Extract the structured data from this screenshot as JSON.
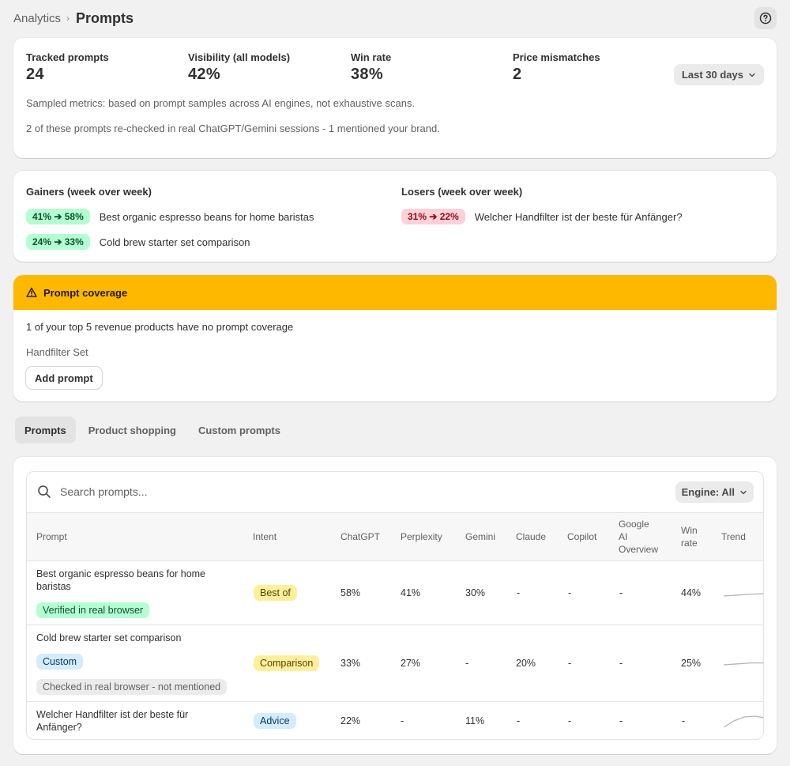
{
  "breadcrumb": {
    "parent": "Analytics",
    "separator": "›",
    "current": "Prompts"
  },
  "metrics": [
    {
      "label": "Tracked prompts",
      "value": "24"
    },
    {
      "label": "Visibility (all models)",
      "value": "42%"
    },
    {
      "label": "Win rate",
      "value": "38%"
    },
    {
      "label": "Price mismatches",
      "value": "2"
    }
  ],
  "date_range": "Last 30 days",
  "notes": {
    "sampled": "Sampled metrics: based on prompt samples across AI engines, not exhaustive scans.",
    "rechecked": "2 of these prompts re-checked in real ChatGPT/Gemini sessions - 1 mentioned your brand."
  },
  "gainers": {
    "heading": "Gainers (week over week)",
    "items": [
      {
        "change": "41% ➔ 58%",
        "prompt": "Best organic espresso beans for home baristas"
      },
      {
        "change": "24% ➔ 33%",
        "prompt": "Cold brew starter set comparison"
      }
    ]
  },
  "losers": {
    "heading": "Losers (week over week)",
    "items": [
      {
        "change": "31% ➔ 22%",
        "prompt": "Welcher Handfilter ist der beste für Anfänger?"
      }
    ]
  },
  "coverage": {
    "title": "Prompt coverage",
    "message": "1 of your top 5 revenue products have no prompt coverage",
    "product": "Handfilter Set",
    "button": "Add prompt"
  },
  "tabs": [
    "Prompts",
    "Product shopping",
    "Custom prompts"
  ],
  "search": {
    "placeholder": "Search prompts...",
    "engine_filter": "Engine: All"
  },
  "table": {
    "headers": {
      "prompt": "Prompt",
      "intent": "Intent",
      "chatgpt": "ChatGPT",
      "perplexity": "Perplexity",
      "gemini": "Gemini",
      "claude": "Claude",
      "copilot": "Copilot",
      "google1": "Google",
      "google2": "AI",
      "google3": "Overview",
      "win1": "Win",
      "win2": "rate",
      "trend": "Trend"
    },
    "rows": [
      {
        "prompt1": "Best organic espresso beans for home",
        "prompt2": "baristas",
        "badges": [
          "Verified in real browser"
        ],
        "intent": "Best of",
        "chatgpt": "58%",
        "perplexity": "41%",
        "gemini": "30%",
        "claude": "-",
        "copilot": "-",
        "google": "-",
        "win": "44%",
        "trend": [
          0.4,
          0.46,
          0.52,
          0.55
        ]
      },
      {
        "prompt1": "Cold brew starter set comparison",
        "badges": [
          "Custom",
          "Checked in real browser - not mentioned"
        ],
        "intent": "Comparison",
        "chatgpt": "33%",
        "perplexity": "27%",
        "gemini": "-",
        "claude": "20%",
        "copilot": "-",
        "google": "-",
        "win": "25%",
        "trend": [
          0.4,
          0.46,
          0.52,
          0.52
        ]
      },
      {
        "prompt1": "Welcher Handfilter ist der beste für",
        "prompt2": "Anfänger?",
        "intent": "Advice",
        "chatgpt": "22%",
        "perplexity": "-",
        "gemini": "11%",
        "claude": "-",
        "copilot": "-",
        "google": "-",
        "win": "-",
        "trend": [
          0.1,
          0.5,
          0.75,
          0.8,
          0.7
        ]
      }
    ]
  },
  "colors": {
    "warning": "#ffb800",
    "success_bg": "#b4fed2",
    "critical_bg": "#fed1d7",
    "trend_line": "#b5b5b5"
  }
}
